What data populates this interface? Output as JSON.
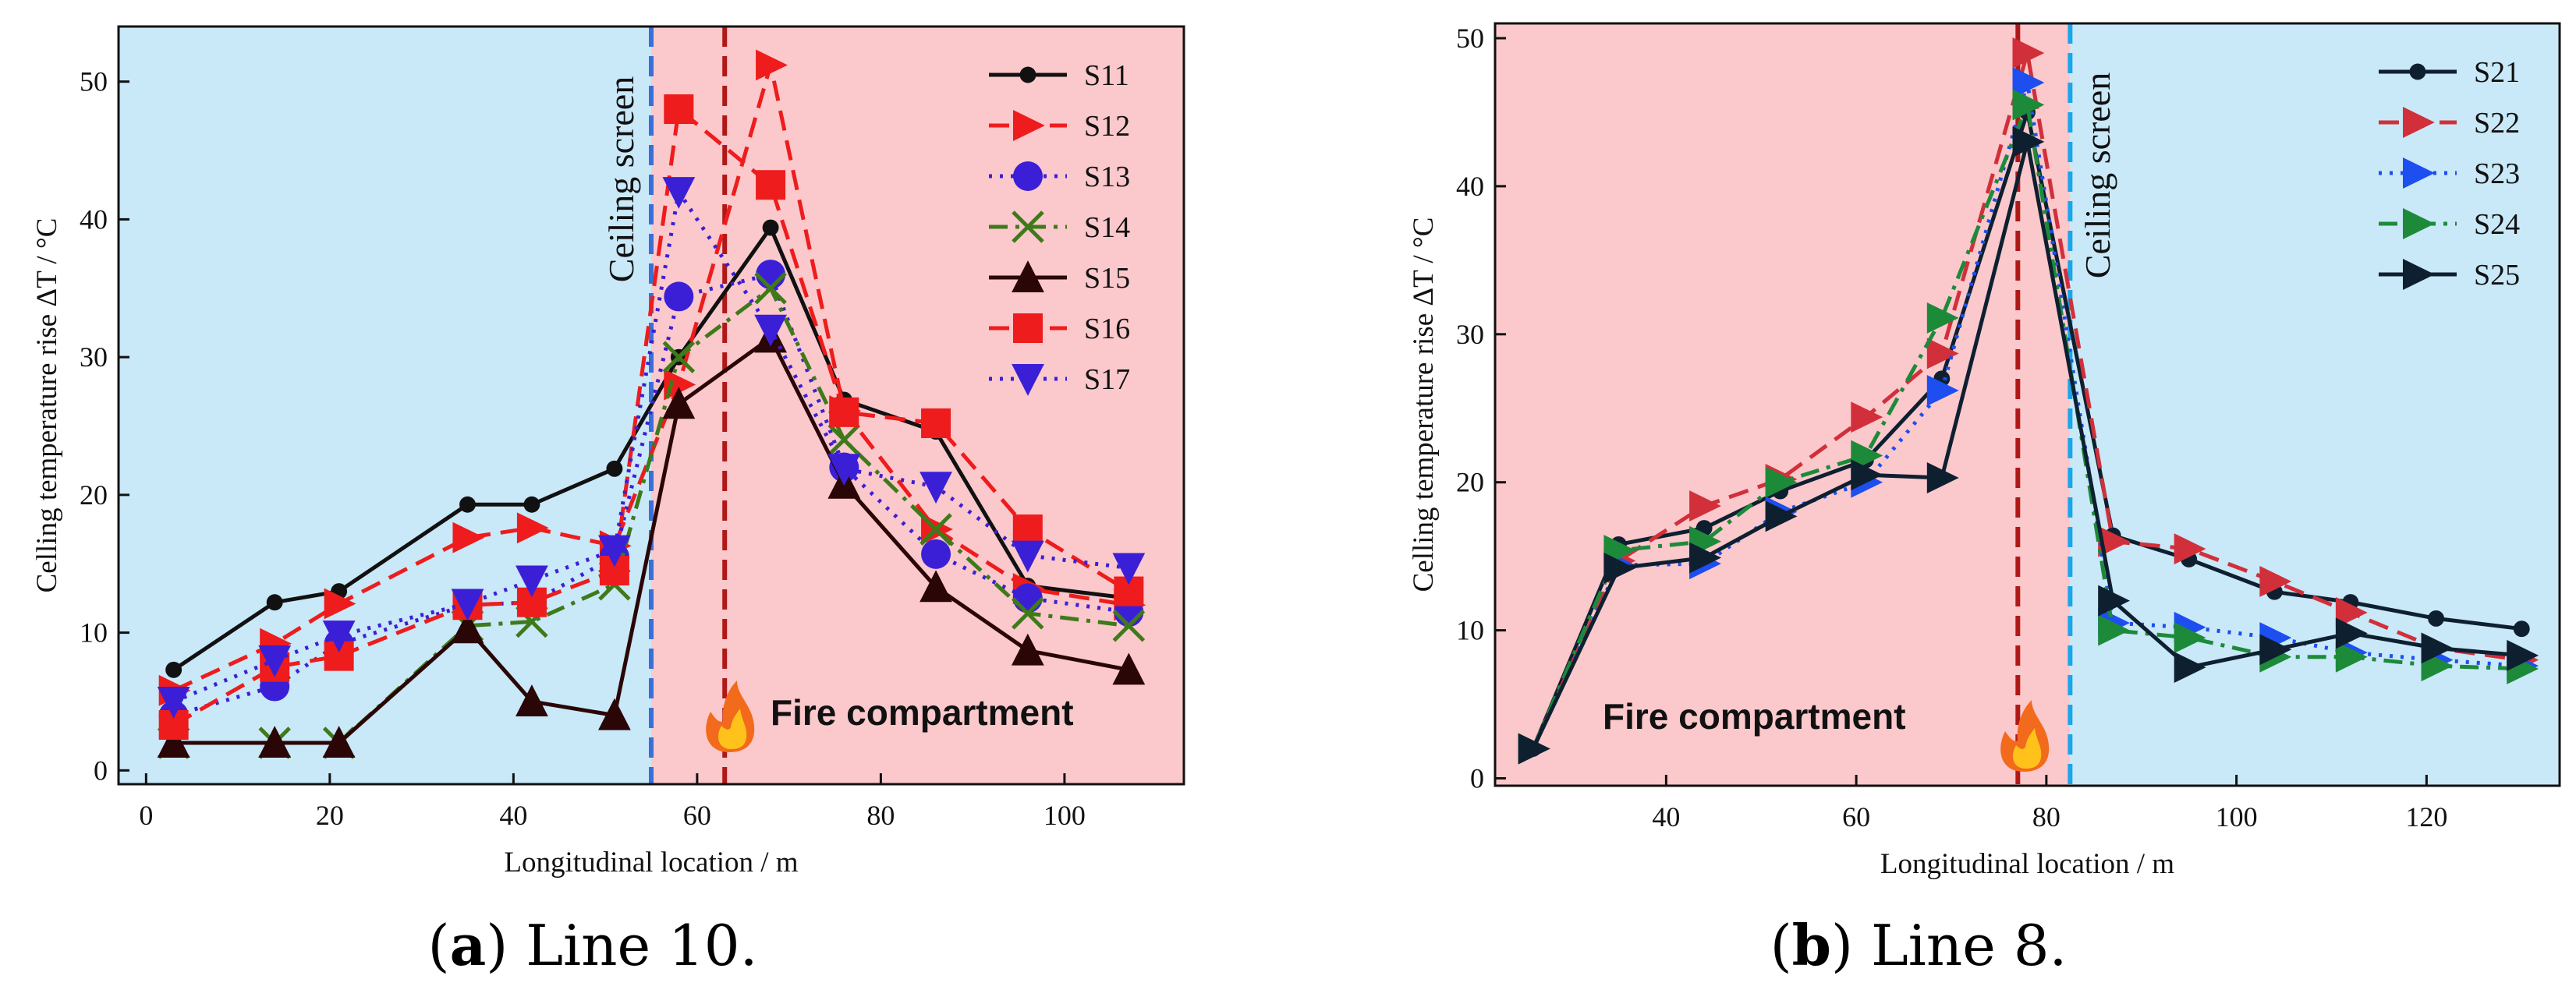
{
  "colors": {
    "blue_region": "#c9e8f8",
    "red_region": "#fbc8cc",
    "screen_line_a": "#3a6fd8",
    "screen_line_b": "#1aa6e8",
    "fire_line": "#b01818"
  },
  "captions": [
    {
      "letter": "a",
      "text": " Line 10."
    },
    {
      "letter": "b",
      "text": " Line 8."
    }
  ],
  "chart_data": [
    {
      "type": "line",
      "id": "a",
      "xlabel": "Longitudinal location / m",
      "ylabel": "Celling temperature rise ΔT / °C",
      "xlim": [
        -3,
        113
      ],
      "ylim": [
        -1,
        54
      ],
      "xticks": [
        0,
        20,
        40,
        60,
        80,
        100
      ],
      "yticks": [
        0,
        10,
        20,
        30,
        40,
        50
      ],
      "regions": [
        {
          "from": -3,
          "to": 55,
          "color": "blue"
        },
        {
          "from": 55,
          "to": 113,
          "color": "red"
        }
      ],
      "ceiling_screen_x": 55,
      "fire_x": 63,
      "annotations": {
        "ceiling_screen": "Ceiling screen",
        "fire": "Fire compartment",
        "fire_icon": "fire-icon"
      },
      "legend_position": "top-right",
      "series": [
        {
          "name": "S11",
          "color": "#111111",
          "dash": "solid",
          "marker": "dot",
          "x": [
            3,
            14,
            21,
            35,
            42,
            51,
            58,
            68,
            76,
            86,
            96,
            107
          ],
          "y": [
            7.3,
            12.2,
            13.0,
            19.3,
            19.3,
            21.9,
            30.0,
            39.4,
            26.9,
            24.6,
            13.4,
            12.5
          ]
        },
        {
          "name": "S12",
          "color": "#ee1c1c",
          "dash": "dashed",
          "marker": "triangle-right",
          "x": [
            3,
            14,
            21,
            35,
            42,
            51,
            58,
            68,
            76,
            86,
            96,
            107
          ],
          "y": [
            5.8,
            9.2,
            12.1,
            16.9,
            17.6,
            16.3,
            28.0,
            51.2,
            26.1,
            17.5,
            13.2,
            12.0
          ]
        },
        {
          "name": "S13",
          "color": "#3b1fd6",
          "dash": "dotted",
          "marker": "circle",
          "x": [
            3,
            14,
            21,
            35,
            42,
            51,
            58,
            68,
            76,
            86,
            96,
            107
          ],
          "y": [
            4.0,
            6.1,
            9.2,
            12.0,
            12.2,
            15.5,
            34.4,
            36.0,
            22.0,
            15.7,
            12.5,
            11.5
          ]
        },
        {
          "name": "S14",
          "color": "#3f7a1a",
          "dash": "dashdot",
          "marker": "x",
          "x": [
            3,
            14,
            21,
            35,
            42,
            51,
            58,
            68,
            76,
            86,
            96,
            107
          ],
          "y": [
            2.0,
            2.0,
            2.0,
            10.5,
            10.8,
            13.5,
            30.0,
            35.0,
            24.0,
            17.5,
            11.4,
            10.5
          ]
        },
        {
          "name": "S15",
          "color": "#2a0606",
          "dash": "solid",
          "marker": "triangle-up",
          "x": [
            3,
            14,
            21,
            35,
            42,
            51,
            58,
            68,
            76,
            86,
            96,
            107
          ],
          "y": [
            2.0,
            2.0,
            2.0,
            10.3,
            5.0,
            4.0,
            26.6,
            31.4,
            20.8,
            13.3,
            8.7,
            7.3
          ]
        },
        {
          "name": "S16",
          "color": "#ee1c1c",
          "dash": "dashed",
          "marker": "square",
          "x": [
            3,
            14,
            21,
            35,
            42,
            51,
            58,
            68,
            76,
            86,
            96,
            107
          ],
          "y": [
            3.3,
            7.5,
            8.3,
            12.0,
            12.2,
            14.5,
            48.0,
            42.5,
            26.0,
            25.2,
            17.5,
            13.0
          ]
        },
        {
          "name": "S17",
          "color": "#3b1fd6",
          "dash": "dotted",
          "marker": "triangle-down",
          "x": [
            3,
            14,
            21,
            35,
            42,
            51,
            58,
            68,
            76,
            86,
            96,
            107
          ],
          "y": [
            5.0,
            8.0,
            9.8,
            12.1,
            13.8,
            16.0,
            42.0,
            32.0,
            21.9,
            20.6,
            15.6,
            14.7
          ]
        }
      ]
    },
    {
      "type": "line",
      "id": "b",
      "xlabel": "Longitudinal location / m",
      "ylabel": "Celling temperature rise ΔT / °C",
      "xlim": [
        22,
        134
      ],
      "ylim": [
        -0.5,
        51
      ],
      "xticks": [
        40,
        60,
        80,
        100,
        120
      ],
      "yticks": [
        0,
        10,
        20,
        30,
        40,
        50
      ],
      "regions": [
        {
          "from": 22,
          "to": 82.5,
          "color": "red"
        },
        {
          "from": 82.5,
          "to": 134,
          "color": "blue"
        }
      ],
      "ceiling_screen_x": 82.5,
      "fire_x": 77,
      "annotations": {
        "ceiling_screen": "Ceiling screen",
        "fire": "Fire compartment",
        "fire_icon": "fire-icon"
      },
      "legend_position": "top-right",
      "series": [
        {
          "name": "S21",
          "color": "#0e2030",
          "dash": "solid",
          "marker": "dot",
          "x": [
            26,
            35,
            44,
            52,
            61,
            69,
            78,
            87,
            95,
            104,
            112,
            121,
            130
          ],
          "y": [
            2.0,
            15.8,
            16.9,
            19.4,
            21.5,
            27.0,
            45.0,
            16.4,
            14.8,
            12.6,
            11.9,
            10.8,
            10.1
          ]
        },
        {
          "name": "S22",
          "color": "#d1303a",
          "dash": "dashed",
          "marker": "triangle-right",
          "x": [
            26,
            35,
            44,
            52,
            61,
            69,
            78,
            87,
            95,
            104,
            112,
            121,
            130
          ],
          "y": [
            2.0,
            14.7,
            18.4,
            20.2,
            24.4,
            28.7,
            49.0,
            16.0,
            15.5,
            13.3,
            11.2,
            8.8,
            8.0
          ]
        },
        {
          "name": "S23",
          "color": "#1c4ef0",
          "dash": "dotted",
          "marker": "triangle-right",
          "x": [
            26,
            35,
            44,
            52,
            61,
            69,
            78,
            87,
            95,
            104,
            112,
            121,
            130
          ],
          "y": [
            2.0,
            14.4,
            14.5,
            18.0,
            20.0,
            26.2,
            47.0,
            10.5,
            10.2,
            9.5,
            8.5,
            8.0,
            7.6
          ]
        },
        {
          "name": "S24",
          "color": "#1d8a3a",
          "dash": "dashdot",
          "marker": "triangle-right",
          "x": [
            26,
            35,
            44,
            52,
            61,
            69,
            78,
            87,
            95,
            104,
            112,
            121,
            130
          ],
          "y": [
            2.0,
            15.4,
            16.0,
            20.0,
            21.8,
            31.1,
            45.5,
            10.0,
            9.5,
            8.2,
            8.2,
            7.6,
            7.4
          ]
        },
        {
          "name": "S25",
          "color": "#0e2030",
          "dash": "solid",
          "marker": "triangle-right",
          "x": [
            26,
            35,
            44,
            52,
            61,
            69,
            78,
            87,
            95,
            104,
            112,
            121,
            130
          ],
          "y": [
            2.0,
            14.2,
            14.9,
            17.7,
            20.5,
            20.3,
            43.0,
            12.0,
            7.5,
            8.7,
            9.8,
            8.8,
            8.3
          ]
        }
      ]
    }
  ]
}
